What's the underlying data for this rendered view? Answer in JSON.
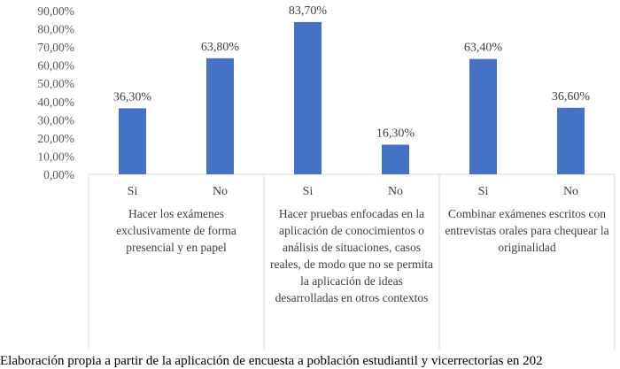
{
  "chart_data": {
    "type": "bar",
    "groups": [
      {
        "label": "Hacer los exámenes exclusivamente de forma presencial y en papel",
        "categories": [
          "Si",
          "No"
        ],
        "values": [
          36.3,
          63.8
        ]
      },
      {
        "label": "Hacer pruebas enfocadas en la aplicación de conocimientos o análisis de situaciones, casos reales, de modo que no se permita la aplicación de ideas desarrolladas en otros contextos",
        "categories": [
          "Si",
          "No"
        ],
        "values": [
          83.7,
          16.3
        ]
      },
      {
        "label": "Combinar exámenes escritos con entrevistas orales para chequear la originalidad",
        "categories": [
          "Si",
          "No"
        ],
        "values": [
          63.4,
          36.6
        ]
      }
    ],
    "data_labels": [
      "36,30%",
      "63,80%",
      "83,70%",
      "16,30%",
      "63,40%",
      "36,60%"
    ],
    "yticks": [
      "0,00%",
      "10,00%",
      "20,00%",
      "30,00%",
      "40,00%",
      "50,00%",
      "60,00%",
      "70,00%",
      "80,00%",
      "90,00%"
    ],
    "ylim": [
      0,
      90
    ],
    "grid": false,
    "bar_color": "#4472c4"
  },
  "caption": "Elaboración propia a partir de la aplicación de encuesta a población estudiantil y vicerrectorías en 202"
}
